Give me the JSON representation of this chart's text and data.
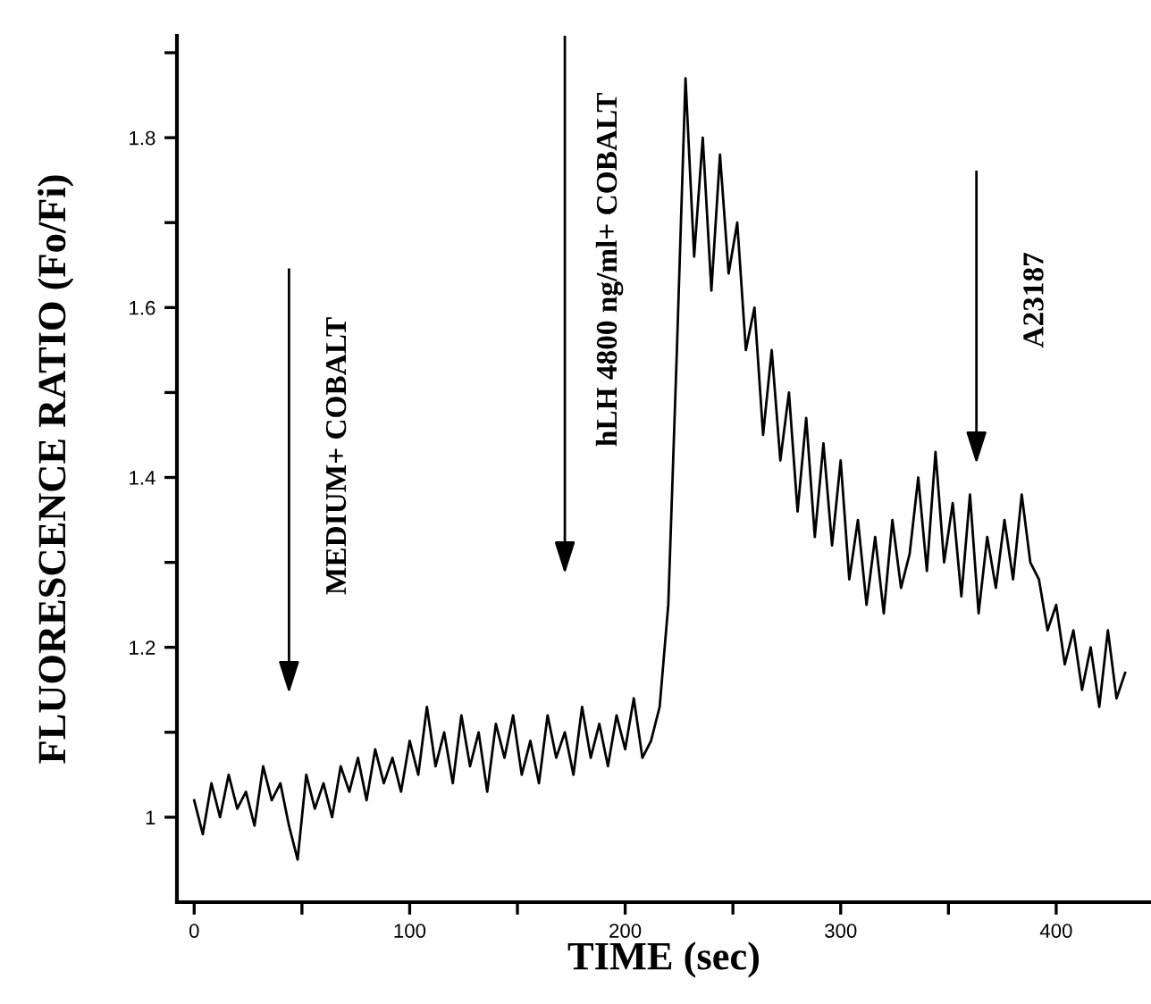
{
  "chart_data": {
    "type": "line",
    "xlabel": "TIME (sec)",
    "ylabel": "FLUORESCENCE RATIO (Fo/Fi)",
    "x": [
      0,
      4,
      8,
      12,
      16,
      20,
      24,
      28,
      32,
      36,
      40,
      44,
      48,
      52,
      56,
      60,
      64,
      68,
      72,
      76,
      80,
      84,
      88,
      92,
      96,
      100,
      104,
      108,
      112,
      116,
      120,
      124,
      128,
      132,
      136,
      140,
      144,
      148,
      152,
      156,
      160,
      164,
      168,
      172,
      176,
      180,
      184,
      188,
      192,
      196,
      200,
      204,
      208,
      212,
      216,
      220,
      224,
      228,
      232,
      236,
      240,
      244,
      248,
      252,
      256,
      260,
      264,
      268,
      272,
      276,
      280,
      284,
      288,
      292,
      296,
      300,
      304,
      308,
      312,
      316,
      320,
      324,
      328,
      332,
      336,
      340,
      344,
      348,
      352,
      356,
      360,
      364,
      368,
      372,
      376,
      380,
      384,
      388,
      392,
      396,
      400,
      404,
      408,
      412,
      416,
      420,
      424,
      428,
      432
    ],
    "series": [
      {
        "color": "#000000",
        "values": [
          1.02,
          0.98,
          1.04,
          1.0,
          1.05,
          1.01,
          1.03,
          0.99,
          1.06,
          1.02,
          1.04,
          0.99,
          0.95,
          1.05,
          1.01,
          1.04,
          1.0,
          1.06,
          1.03,
          1.07,
          1.02,
          1.08,
          1.04,
          1.07,
          1.03,
          1.09,
          1.05,
          1.13,
          1.06,
          1.1,
          1.04,
          1.12,
          1.06,
          1.1,
          1.03,
          1.11,
          1.07,
          1.12,
          1.05,
          1.09,
          1.04,
          1.12,
          1.07,
          1.1,
          1.05,
          1.13,
          1.07,
          1.11,
          1.06,
          1.12,
          1.08,
          1.14,
          1.07,
          1.09,
          1.13,
          1.25,
          1.55,
          1.87,
          1.66,
          1.8,
          1.62,
          1.78,
          1.64,
          1.7,
          1.55,
          1.6,
          1.45,
          1.55,
          1.42,
          1.5,
          1.36,
          1.47,
          1.33,
          1.44,
          1.32,
          1.42,
          1.28,
          1.35,
          1.25,
          1.33,
          1.24,
          1.35,
          1.27,
          1.31,
          1.4,
          1.29,
          1.43,
          1.3,
          1.37,
          1.26,
          1.38,
          1.24,
          1.33,
          1.27,
          1.35,
          1.28,
          1.38,
          1.3,
          1.28,
          1.22,
          1.25,
          1.18,
          1.22,
          1.15,
          1.2,
          1.13,
          1.22,
          1.14,
          1.17
        ]
      }
    ],
    "xlim": [
      -8,
      444
    ],
    "ylim": [
      0.9,
      1.92
    ],
    "xticks": [
      0,
      {
        "value": 50,
        "label": null
      },
      100,
      {
        "value": 150,
        "label": null
      },
      200,
      {
        "value": 250,
        "label": null
      },
      300,
      {
        "value": 350,
        "label": null
      },
      400
    ],
    "yticks": [
      {
        "value": 1,
        "label": "1"
      },
      {
        "value": 1.1,
        "label": null
      },
      1.2,
      {
        "value": 1.3,
        "label": null
      },
      1.4,
      {
        "value": 1.5,
        "label": null
      },
      1.6,
      {
        "value": 1.7,
        "label": null
      },
      1.8,
      {
        "value": 1.9,
        "label": null
      }
    ],
    "grid": false,
    "legend": false,
    "marker": "none",
    "line_style": "solid",
    "ref_lines": [
      {
        "axis": "x",
        "value": 44,
        "label": "MEDIUM+ COBALT"
      },
      {
        "axis": "x",
        "value": 172,
        "label": "hLH 4800 ng/ml+ COBALT"
      },
      {
        "axis": "x",
        "value": 363,
        "label": "A23187"
      }
    ]
  }
}
